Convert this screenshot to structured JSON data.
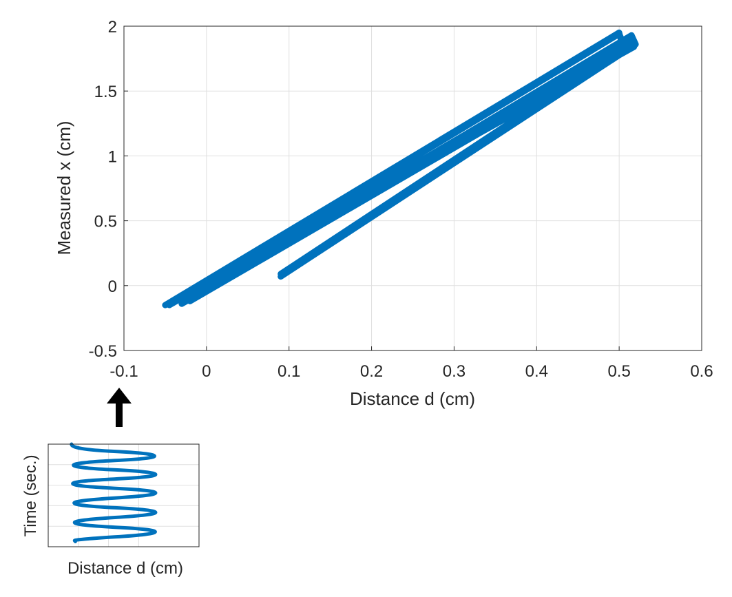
{
  "chart_data": [
    {
      "type": "line",
      "xlabel": "Distance d (cm)",
      "ylabel": "Measured x (cm)",
      "xlim": [
        -0.1,
        0.6
      ],
      "ylim": [
        -0.5,
        2
      ],
      "xticks": [
        -0.1,
        0,
        0.1,
        0.2,
        0.3,
        0.4,
        0.5,
        0.6
      ],
      "yticks": [
        -0.5,
        0,
        0.5,
        1,
        1.5,
        2
      ],
      "xtick_labels": [
        "-0.1",
        "0",
        "0.1",
        "0.2",
        "0.3",
        "0.4",
        "0.5",
        "0.6"
      ],
      "ytick_labels": [
        "-0.5",
        "0",
        "0.5",
        "1",
        "1.5",
        "2"
      ],
      "grid": true,
      "color": "#0072BD",
      "series": [
        {
          "x": [
            -0.05,
            0.5,
            0.505,
            -0.03,
            0.515,
            0.52,
            0.09,
            0.51,
            -0.045,
            0.5,
            0.508,
            -0.02,
            0.51,
            0.518,
            0.05,
            0.505,
            0.5,
            -0.04,
            0.512,
            0.505,
            0.09
          ],
          "y": [
            -0.15,
            1.95,
            1.82,
            -0.14,
            1.93,
            1.86,
            0.07,
            1.85,
            -0.15,
            1.94,
            1.83,
            -0.12,
            1.9,
            1.84,
            0.18,
            1.88,
            1.8,
            -0.13,
            1.87,
            1.83,
            0.09
          ]
        }
      ]
    },
    {
      "type": "line",
      "xlabel": "Distance d (cm)",
      "ylabel": "Time (sec.)",
      "grid": true,
      "color": "#0072BD",
      "series": [
        {
          "x": [
            -0.045,
            -0.05,
            0.5,
            0.51,
            -0.03,
            -0.035,
            0.51,
            0.515,
            -0.04,
            -0.035,
            0.51,
            0.515,
            -0.035,
            -0.02,
            0.51,
            0.515,
            -0.03,
            -0.02,
            0.51,
            0.51,
            -0.03,
            -0.02
          ],
          "y": [
            6.0,
            5.75,
            5.55,
            5.3,
            5.1,
            4.85,
            4.65,
            4.4,
            4.2,
            3.95,
            3.75,
            3.5,
            3.25,
            3.0,
            2.8,
            2.55,
            2.3,
            2.05,
            1.85,
            1.6,
            1.35,
            1.25
          ]
        }
      ]
    }
  ],
  "annotation": {
    "arrow_color": "#000000"
  }
}
